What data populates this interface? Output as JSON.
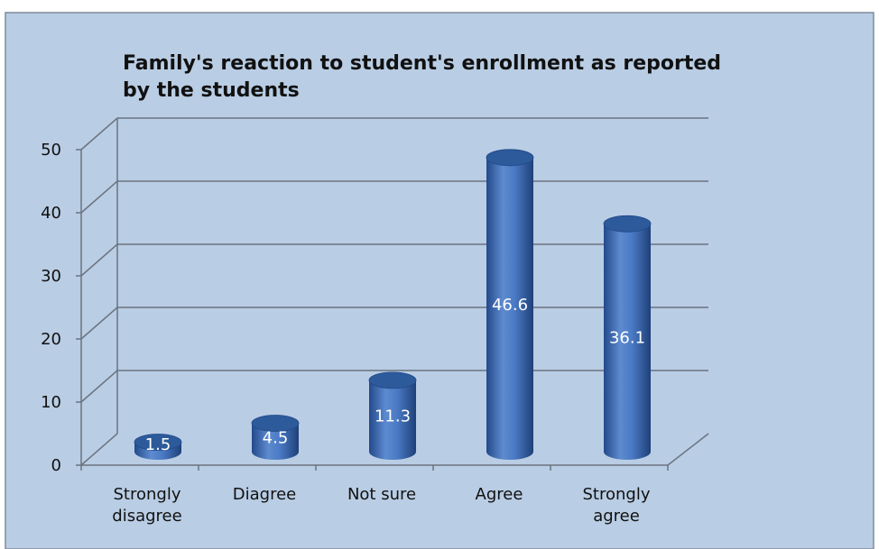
{
  "chart_data": {
    "type": "bar",
    "title_lines": [
      "Family's reaction to student's enrollment as reported",
      "by the students"
    ],
    "categories": [
      [
        "Strongly",
        "disagree"
      ],
      [
        "Diagree"
      ],
      [
        "Not sure"
      ],
      [
        "Agree"
      ],
      [
        "Strongly",
        "agree"
      ]
    ],
    "values": [
      1.5,
      4.5,
      11.3,
      46.6,
      36.1
    ],
    "data_labels": [
      "1.5",
      "4.5",
      "11.3",
      "46.6",
      "36.1"
    ],
    "ylim": [
      0,
      50
    ],
    "yticks": [
      0,
      10,
      20,
      30,
      40,
      50
    ],
    "grid": true,
    "legend": "none",
    "colors": {
      "plot_background": "#b9cde4",
      "bar": "#3d6fb7",
      "bar_dark": "#23498a",
      "bar_light": "#6b98d8",
      "bar_top": "#2c5a9a",
      "gridline": "#6b7380"
    }
  }
}
